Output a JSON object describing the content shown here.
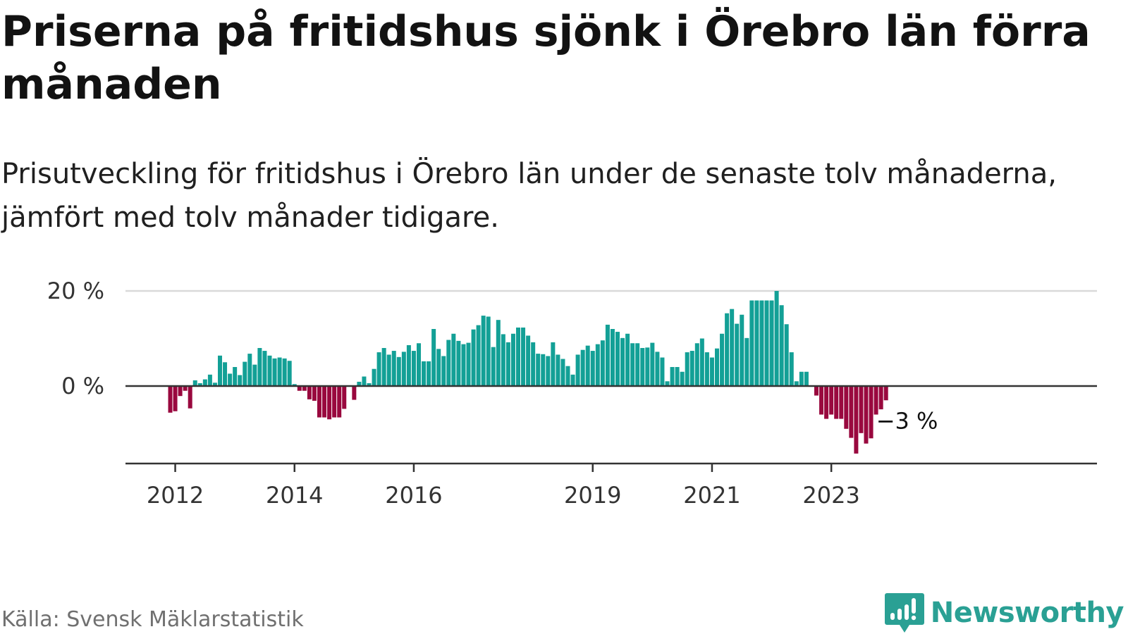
{
  "header": {
    "title": "Priserna på fritidshus sjönk i Örebro län förra månaden",
    "subtitle": "Prisutveckling för fritidshus i Örebro län under de senaste tolv månaderna, jämfört med tolv månader tidigare."
  },
  "footer": {
    "source": "Källa: Svensk Mäklarstatistik",
    "brand": "Newsworthy"
  },
  "colors": {
    "positive": "#13a096",
    "negative": "#99083e",
    "gridline": "#d9d9d9",
    "axis": "#333333",
    "brand": "#2aa094"
  },
  "chart_data": {
    "type": "bar",
    "title": "Priserna på fritidshus sjönk i Örebro län förra månaden",
    "subtitle": "Prisutveckling för fritidshus i Örebro län under de senaste tolv månaderna, jämfört med tolv månader tidigare.",
    "xlabel": "",
    "ylabel": "",
    "start": "2011-12",
    "frequency": "monthly",
    "ylim": [
      -16,
      20
    ],
    "y_ticks": [
      {
        "value": 0,
        "label": "0 %"
      },
      {
        "value": 20,
        "label": "20 %"
      }
    ],
    "x_ticks": [
      {
        "date": "2012-01",
        "label": "2012"
      },
      {
        "date": "2014-01",
        "label": "2014"
      },
      {
        "date": "2016-01",
        "label": "2016"
      },
      {
        "date": "2019-01",
        "label": "2019"
      },
      {
        "date": "2021-01",
        "label": "2021"
      },
      {
        "date": "2023-01",
        "label": "2023"
      }
    ],
    "annotation": {
      "date": "2023-12",
      "label": "−3 %"
    },
    "unit": "%",
    "values": [
      -5.6,
      -5.3,
      -2.1,
      -1.0,
      -4.7,
      1.2,
      0.6,
      1.4,
      2.4,
      0.7,
      6.4,
      5.0,
      2.6,
      4.0,
      2.3,
      5.1,
      6.8,
      4.5,
      8.0,
      7.4,
      6.4,
      5.8,
      6.0,
      5.8,
      5.3,
      0.4,
      -1.0,
      -1.0,
      -2.8,
      -3.1,
      -6.6,
      -6.6,
      -7.0,
      -6.6,
      -6.6,
      -4.8,
      0.0,
      -2.9,
      0.9,
      2.0,
      0.6,
      3.6,
      7.1,
      8.0,
      6.6,
      7.4,
      6.1,
      7.2,
      8.6,
      7.4,
      9.0,
      5.2,
      5.2,
      12.0,
      7.8,
      6.3,
      9.7,
      11.0,
      9.5,
      8.8,
      9.1,
      11.9,
      12.8,
      14.8,
      14.6,
      8.2,
      13.9,
      10.9,
      9.2,
      11.0,
      12.3,
      12.3,
      10.6,
      9.2,
      6.8,
      6.7,
      6.3,
      9.2,
      6.6,
      5.7,
      4.2,
      2.4,
      6.6,
      7.6,
      8.5,
      7.4,
      8.8,
      9.6,
      12.9,
      12.0,
      11.4,
      10.1,
      11.0,
      9.0,
      9.0,
      8.0,
      8.1,
      9.1,
      7.2,
      6.0,
      1.0,
      4.0,
      4.0,
      3.0,
      7.1,
      7.4,
      9.0,
      10.0,
      7.1,
      6.0,
      7.9,
      11.0,
      15.3,
      16.2,
      13.1,
      15.0,
      10.1,
      18.0,
      18.0,
      18.0,
      18.0,
      18.0,
      20.0,
      17.0,
      13.0,
      7.1,
      1.0,
      3.0,
      3.0,
      0.0,
      -2.0,
      -6.0,
      -6.9,
      -6.0,
      -6.9,
      -6.9,
      -9.0,
      -10.9,
      -14.2,
      -9.9,
      -12.1,
      -11.0,
      -6.0,
      -4.9,
      -3.0
    ]
  }
}
